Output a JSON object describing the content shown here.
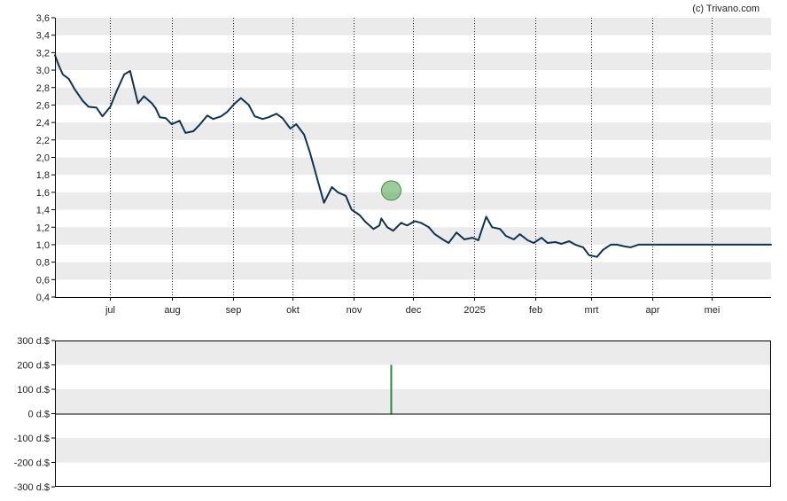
{
  "credit": "(c) Trivano.com",
  "colors": {
    "band": "#ebebeb",
    "line": "#0d3553",
    "marker_fill": "#5aa85a",
    "bar": "#2e8b3a",
    "axis": "#000000"
  },
  "chart_data": [
    {
      "type": "line",
      "title": "",
      "xlabel": "",
      "ylabel": "",
      "ylim": [
        0.4,
        3.6
      ],
      "yticks": [
        "0,4",
        "0,6",
        "0,8",
        "1,0",
        "1,2",
        "1,4",
        "1,6",
        "1,8",
        "2,0",
        "2,2",
        "2,4",
        "2,6",
        "2,8",
        "3,0",
        "3,2",
        "3,4",
        "3,6"
      ],
      "xlim": [
        "2024-06-03",
        "2025-05-31"
      ],
      "xticks": [
        {
          "label": "jul",
          "date": "2024-07-01"
        },
        {
          "label": "aug",
          "date": "2024-08-01"
        },
        {
          "label": "sep",
          "date": "2024-09-01"
        },
        {
          "label": "okt",
          "date": "2024-10-01"
        },
        {
          "label": "nov",
          "date": "2024-11-01"
        },
        {
          "label": "dec",
          "date": "2024-12-01"
        },
        {
          "label": "2025",
          "date": "2025-01-01"
        },
        {
          "label": "feb",
          "date": "2025-02-01"
        },
        {
          "label": "mrt",
          "date": "2025-03-01"
        },
        {
          "label": "apr",
          "date": "2025-04-01"
        },
        {
          "label": "mei",
          "date": "2025-05-01"
        }
      ],
      "grid": "vertical dotted at month ticks, alternating horizontal bands",
      "series": [
        {
          "x": [
            "2024-06-03",
            "2024-06-05",
            "2024-06-07",
            "2024-06-10",
            "2024-06-13",
            "2024-06-17",
            "2024-06-20",
            "2024-06-24",
            "2024-06-27",
            "2024-07-01",
            "2024-07-04",
            "2024-07-08",
            "2024-07-11",
            "2024-07-15",
            "2024-07-18",
            "2024-07-22",
            "2024-07-24",
            "2024-07-26",
            "2024-07-29",
            "2024-08-01",
            "2024-08-05",
            "2024-08-08",
            "2024-08-12",
            "2024-08-15",
            "2024-08-19",
            "2024-08-22",
            "2024-08-26",
            "2024-08-29",
            "2024-09-02",
            "2024-09-05",
            "2024-09-09",
            "2024-09-12",
            "2024-09-16",
            "2024-09-19",
            "2024-09-23",
            "2024-09-26",
            "2024-09-30",
            "2024-10-03",
            "2024-10-07",
            "2024-10-10",
            "2024-10-14",
            "2024-10-17",
            "2024-10-21",
            "2024-10-24",
            "2024-10-28",
            "2024-10-31",
            "2024-11-04",
            "2024-11-07",
            "2024-11-11",
            "2024-11-14",
            "2024-11-15",
            "2024-11-18",
            "2024-11-21",
            "2024-11-25",
            "2024-11-28",
            "2024-12-02",
            "2024-12-05",
            "2024-12-09",
            "2024-12-12",
            "2024-12-16",
            "2024-12-19",
            "2024-12-23",
            "2024-12-27",
            "2024-12-31",
            "2025-01-03",
            "2025-01-07",
            "2025-01-10",
            "2025-01-14",
            "2025-01-17",
            "2025-01-21",
            "2025-01-24",
            "2025-01-28",
            "2025-01-31",
            "2025-02-04",
            "2025-02-07",
            "2025-02-11",
            "2025-02-14",
            "2025-02-18",
            "2025-02-21",
            "2025-02-25",
            "2025-02-28",
            "2025-03-04",
            "2025-03-07",
            "2025-03-11",
            "2025-03-14",
            "2025-03-18",
            "2025-03-21",
            "2025-03-25",
            "2025-03-28",
            "2025-04-01",
            "2025-04-04",
            "2025-04-08",
            "2025-04-11",
            "2025-04-15",
            "2025-04-18",
            "2025-04-22",
            "2025-04-25",
            "2025-04-29",
            "2025-05-02",
            "2025-05-06",
            "2025-05-09",
            "2025-05-13",
            "2025-05-16",
            "2025-05-20",
            "2025-05-23",
            "2025-05-27",
            "2025-05-31"
          ],
          "y": [
            3.17,
            3.05,
            2.95,
            2.9,
            2.78,
            2.65,
            2.58,
            2.57,
            2.47,
            2.58,
            2.75,
            2.95,
            2.99,
            2.62,
            2.7,
            2.62,
            2.56,
            2.46,
            2.45,
            2.38,
            2.42,
            2.28,
            2.3,
            2.37,
            2.48,
            2.44,
            2.47,
            2.52,
            2.62,
            2.68,
            2.6,
            2.47,
            2.44,
            2.46,
            2.5,
            2.45,
            2.33,
            2.38,
            2.26,
            2.05,
            1.72,
            1.48,
            1.66,
            1.6,
            1.56,
            1.4,
            1.34,
            1.26,
            1.18,
            1.22,
            1.3,
            1.2,
            1.16,
            1.25,
            1.22,
            1.27,
            1.25,
            1.2,
            1.12,
            1.06,
            1.02,
            1.14,
            1.06,
            1.08,
            1.05,
            1.32,
            1.2,
            1.18,
            1.1,
            1.06,
            1.12,
            1.05,
            1.02,
            1.08,
            1.02,
            1.03,
            1.01,
            1.04,
            1.0,
            0.97,
            0.88,
            0.86,
            0.94,
            1.0,
            1.0,
            0.98,
            0.97,
            1.0,
            1.0,
            1.0,
            1.0,
            1.0,
            1.0,
            1.0,
            1.0,
            1.0,
            1.0,
            1.0,
            1.0,
            1.0,
            1.0,
            1.0,
            1.0,
            1.0,
            1.0,
            1.0,
            1.0
          ]
        }
      ],
      "marker": {
        "date": "2024-11-20",
        "value": 1.62
      }
    },
    {
      "type": "bar",
      "title": "",
      "xlabel": "",
      "ylabel": "",
      "ylim": [
        -300,
        300
      ],
      "yticks": [
        "300 d.$",
        "200 d.$",
        "100 d.$",
        "0 d.$",
        "-100 d.$",
        "-200 d.$",
        "-300 d.$"
      ],
      "xlim": [
        "2024-06-03",
        "2025-05-31"
      ],
      "bars": [
        {
          "date": "2024-11-20",
          "value": 200
        }
      ]
    }
  ]
}
